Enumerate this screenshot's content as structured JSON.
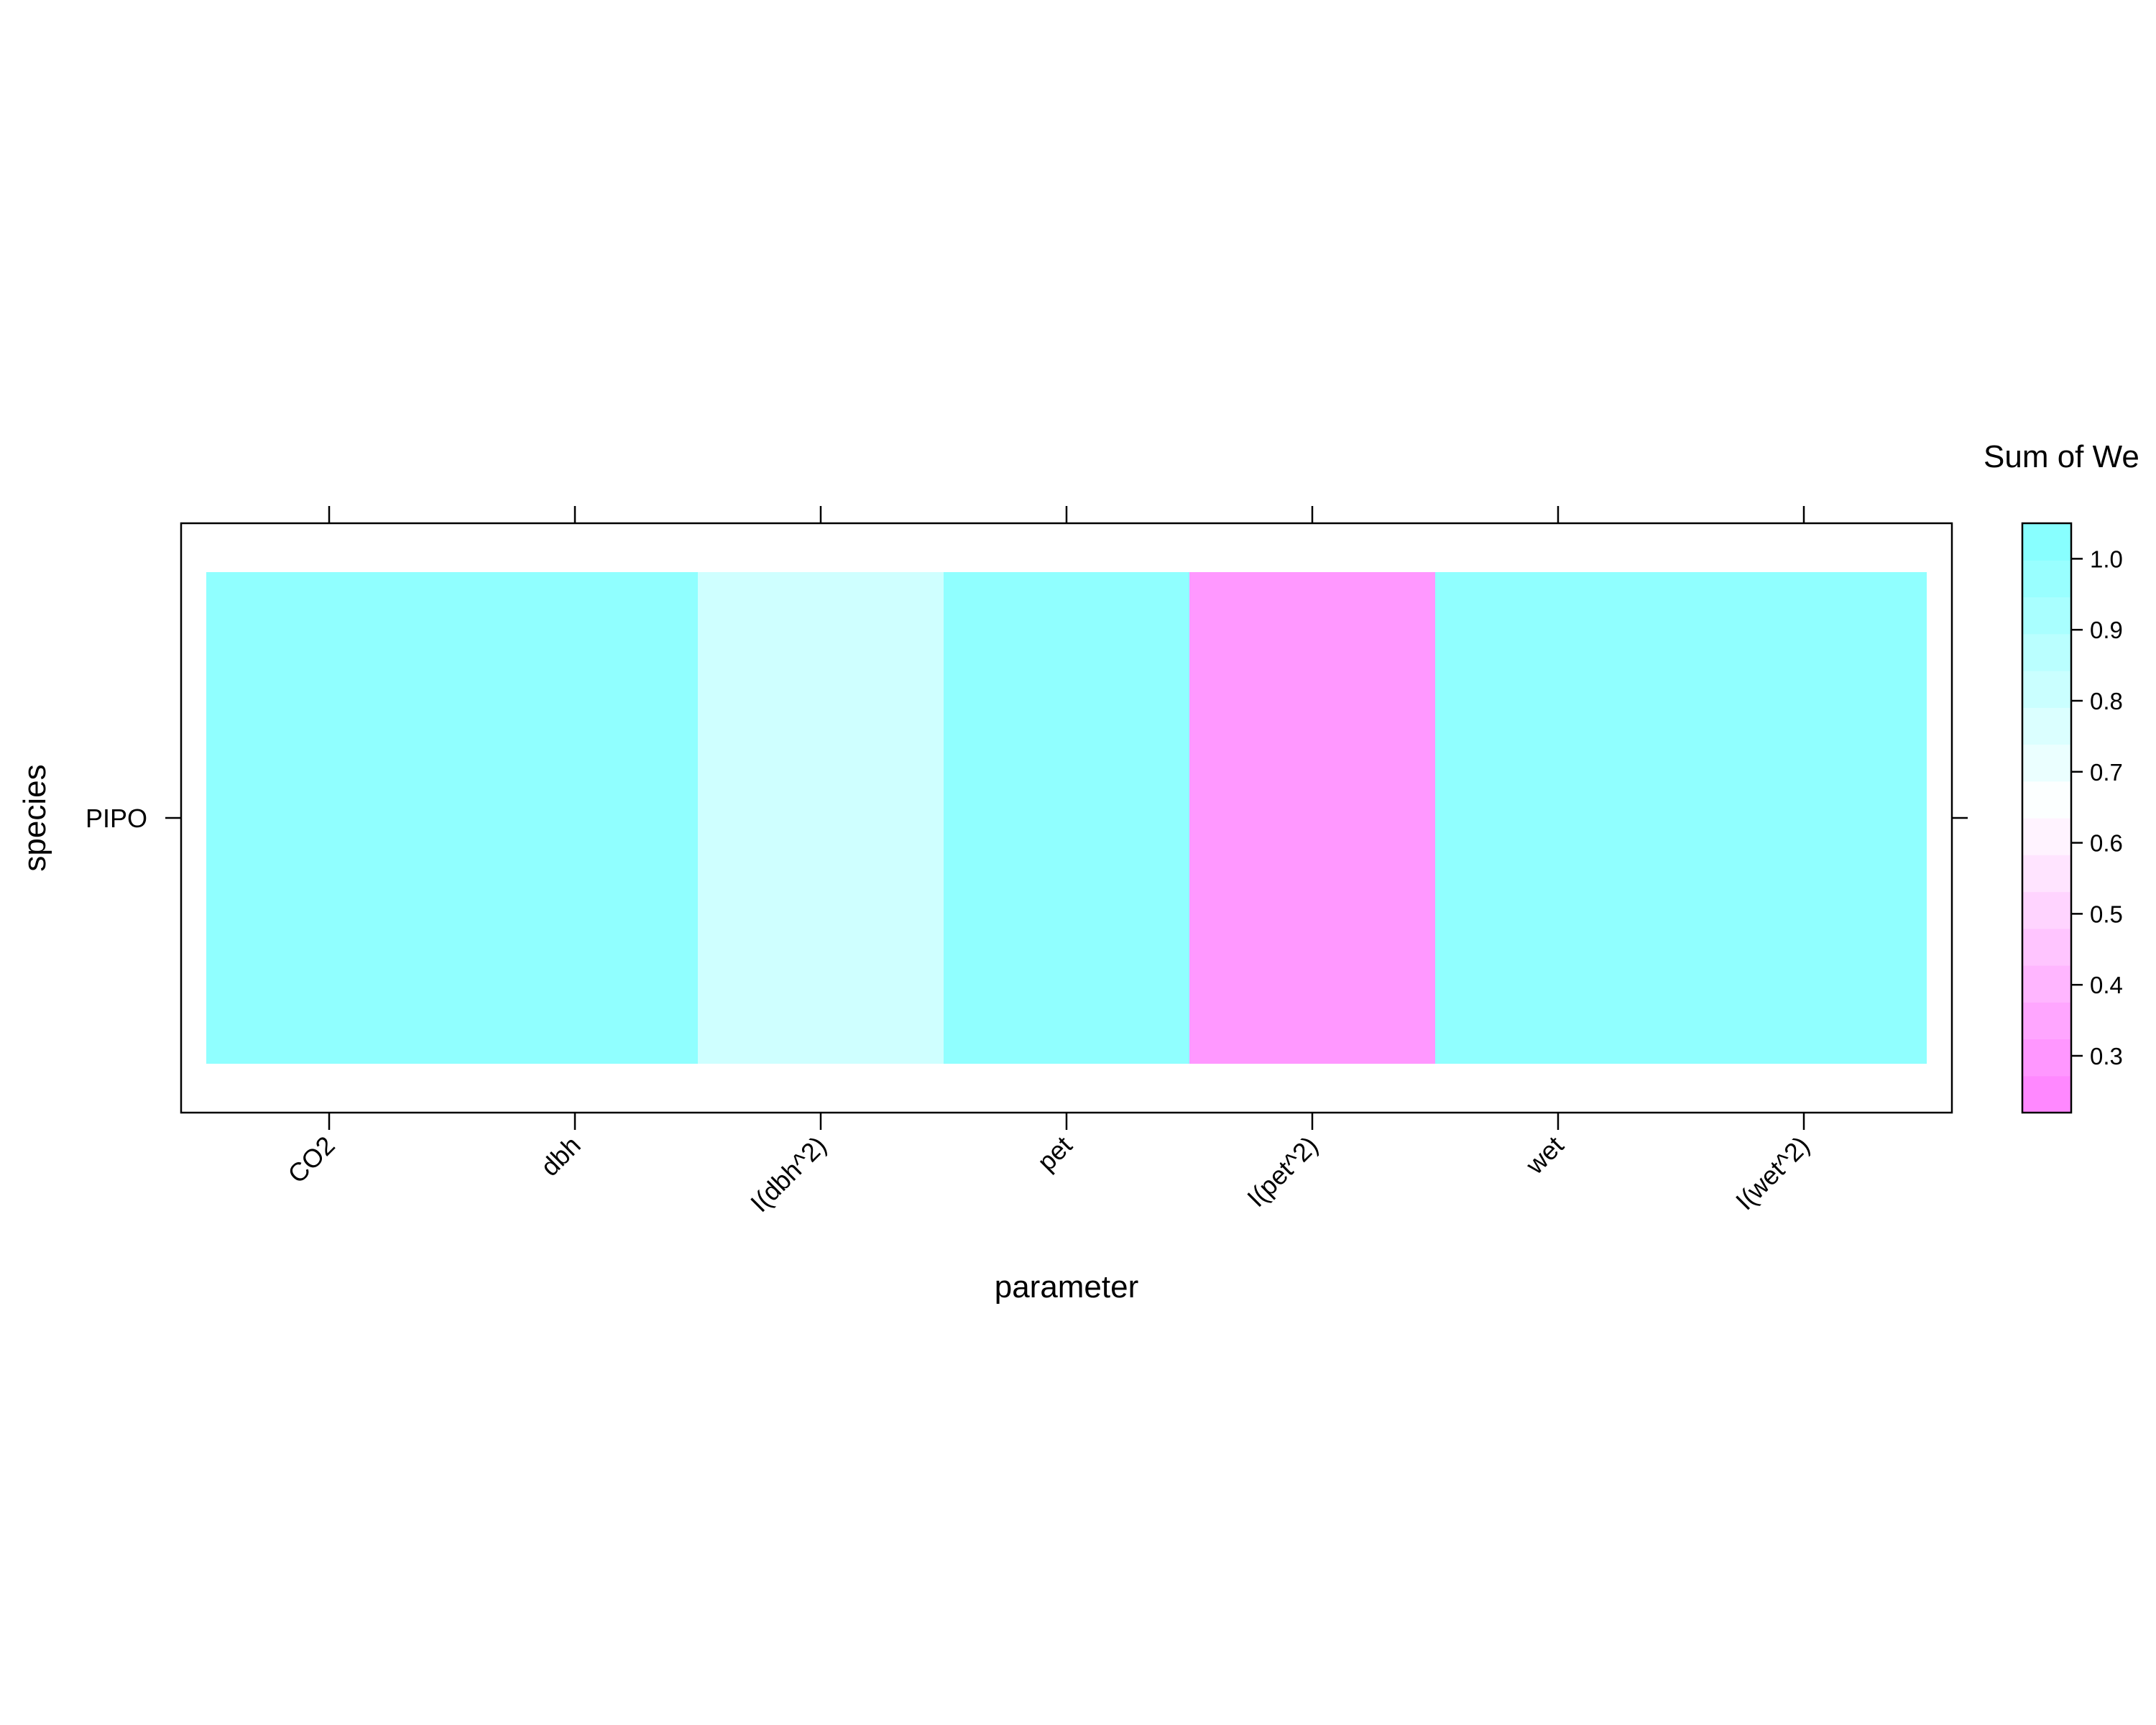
{
  "chart_data": {
    "type": "heatmap",
    "xlabel": "parameter",
    "ylabel": "species",
    "x_categories": [
      "CO2",
      "dbh",
      "I(dbh^2)",
      "pet",
      "I(pet^2)",
      "wet",
      "I(wet^2)"
    ],
    "y_categories": [
      "PIPO"
    ],
    "cells": [
      {
        "x": "CO2",
        "y": "PIPO",
        "value": 1.0
      },
      {
        "x": "dbh",
        "y": "PIPO",
        "value": 1.0
      },
      {
        "x": "I(dbh^2)",
        "y": "PIPO",
        "value": 0.8
      },
      {
        "x": "pet",
        "y": "PIPO",
        "value": 1.0
      },
      {
        "x": "I(pet^2)",
        "y": "PIPO",
        "value": 0.3
      },
      {
        "x": "wet",
        "y": "PIPO",
        "value": 1.0
      },
      {
        "x": "I(wet^2)",
        "y": "PIPO",
        "value": 1.0
      }
    ],
    "colorbar": {
      "title": "Sum of We",
      "ticks": [
        "1.0",
        "0.9",
        "0.8",
        "0.7",
        "0.6",
        "0.5",
        "0.4",
        "0.3"
      ],
      "range": [
        0.22,
        1.05
      ],
      "low_color": "#ff80ff",
      "high_color": "#80ffff",
      "mid_color": "#ffffff",
      "midpoint": 0.65
    },
    "grid": false,
    "legend_position": "right"
  }
}
